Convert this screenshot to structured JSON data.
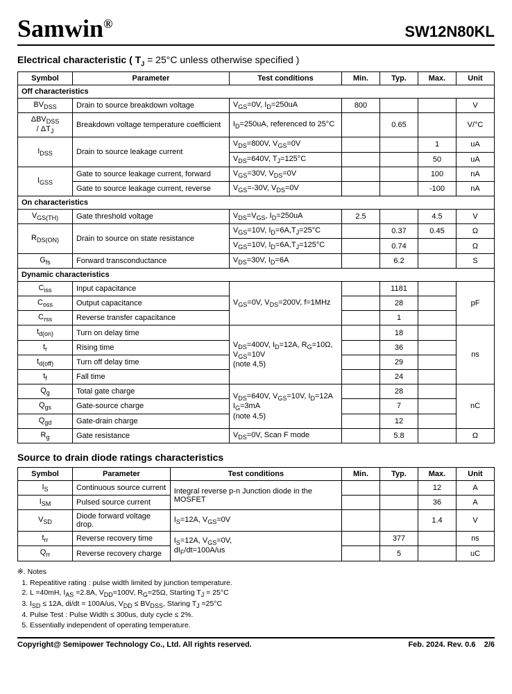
{
  "header": {
    "brand": "Samwin",
    "reg": "®",
    "partno": "SW12N80KL"
  },
  "ec_title": "Electrical characteristic ( T",
  "ec_title_sub": "J",
  "ec_title_rest": " = 25°C unless otherwise specified )",
  "cols": {
    "symbol": "Symbol",
    "param": "Parameter",
    "test": "Test conditions",
    "min": "Min.",
    "typ": "Typ.",
    "max": "Max.",
    "unit": "Unit"
  },
  "sub1": "Off characteristics",
  "sub2": "On characteristics",
  "sub3": "Dynamic characteristics",
  "r1": {
    "sym": "BV<sub>DSS</sub>",
    "param": "Drain to source breakdown voltage",
    "test": "V<sub>GS</sub>=0V, I<sub>D</sub>=250uA",
    "min": "800",
    "typ": "",
    "max": "",
    "unit": "V"
  },
  "r2": {
    "sym": "ΔBV<sub>DSS</sub><br>/ ΔT<sub>J</sub>",
    "param": "Breakdown voltage temperature coefficient",
    "test": "I<sub>D</sub>=250uA, referenced to 25°C",
    "min": "",
    "typ": "0.65",
    "max": "",
    "unit": "V/°C"
  },
  "r3": {
    "sym": "I<sub>DSS</sub>",
    "param": "Drain to source leakage current",
    "test1": "V<sub>DS</sub>=800V, V<sub>GS</sub>=0V",
    "max1": "1",
    "unit1": "uA",
    "test2": "V<sub>DS</sub>=640V, T<sub>J</sub>=125°C",
    "max2": "50",
    "unit2": "uA"
  },
  "r4": {
    "sym": "I<sub>GSS</sub>",
    "param1": "Gate to source leakage current, forward",
    "test1": "V<sub>GS</sub>=30V, V<sub>DS</sub>=0V",
    "max1": "100",
    "unit1": "nA",
    "param2": "Gate to source leakage current, reverse",
    "test2": "V<sub>GS</sub>=-30V, V<sub>DS</sub>=0V",
    "max2": "-100",
    "unit2": "nA"
  },
  "r5": {
    "sym": "V<sub>GS(TH)</sub>",
    "param": "Gate threshold voltage",
    "test": "V<sub>DS</sub>=V<sub>GS</sub>, I<sub>D</sub>=250uA",
    "min": "2.5",
    "typ": "",
    "max": "4.5",
    "unit": "V"
  },
  "r6": {
    "sym": "R<sub>DS(ON)</sub>",
    "param": "Drain to source on state resistance",
    "test1": "V<sub>GS</sub>=10V, I<sub>D</sub>=6A,T<sub>J</sub>=25°C",
    "typ1": "0.37",
    "max1": "0.45",
    "unit1": "Ω",
    "test2": "V<sub>GS</sub>=10V, I<sub>D</sub>=6A,T<sub>J</sub>=125°C",
    "typ2": "0.74",
    "unit2": "Ω"
  },
  "r7": {
    "sym": "G<sub>fs</sub>",
    "param": "Forward transconductance",
    "test": "V<sub>DS</sub>=30V, I<sub>D</sub>=6A",
    "typ": "6.2",
    "unit": "S"
  },
  "r8": {
    "sym": "C<sub>iss</sub>",
    "param": "Input capacitance",
    "typ": "1181"
  },
  "r9": {
    "sym": "C<sub>oss</sub>",
    "param": "Output capacitance",
    "test": "V<sub>GS</sub>=0V, V<sub>DS</sub>=200V, f=1MHz",
    "typ": "28",
    "unit": "pF"
  },
  "r10": {
    "sym": "C<sub>rss</sub>",
    "param": "Reverse transfer capacitance",
    "typ": "1"
  },
  "r11": {
    "sym": "t<sub>d(on)</sub>",
    "param": "Turn on delay time",
    "typ": "18"
  },
  "r12": {
    "sym": "t<sub>r</sub>",
    "param": "Rising time",
    "test": "V<sub>DS</sub>=400V, I<sub>D</sub>=12A, R<sub>G</sub>=10Ω,<br>V<sub>GS</sub>=10V<br>(note 4,5)",
    "typ": "36",
    "unit": "ns"
  },
  "r13": {
    "sym": "t<sub>d(off)</sub>",
    "param": "Turn off delay time",
    "typ": "29"
  },
  "r14": {
    "sym": "t<sub>f</sub>",
    "param": "Fall time",
    "typ": "24"
  },
  "r15": {
    "sym": "Q<sub>g</sub>",
    "param": "Total gate charge",
    "test": "V<sub>DS</sub>=640V, V<sub>GS</sub>=10V, I<sub>D</sub>=12A<br>I<sub>G</sub>=3mA<br>(note 4,5)",
    "typ": "28",
    "unit": "nC"
  },
  "r16": {
    "sym": "Q<sub>gs</sub>",
    "param": "Gate-source charge",
    "typ": "7"
  },
  "r17": {
    "sym": "Q<sub>gd</sub>",
    "param": "Gate-drain charge",
    "typ": "12"
  },
  "r18": {
    "sym": "R<sub>g</sub>",
    "param": "Gate resistance",
    "test": "V<sub>DS</sub>=0V, Scan F mode",
    "typ": "5.8",
    "unit": "Ω"
  },
  "diode_title": "Source to drain diode ratings characteristics",
  "d1": {
    "sym": "I<sub>S</sub>",
    "param": "Continuous source current",
    "test": "Integral reverse p-n Junction diode in the MOSFET",
    "max": "12",
    "unit": "A"
  },
  "d2": {
    "sym": "I<sub>SM</sub>",
    "param": "Pulsed source current",
    "max": "36",
    "unit": "A"
  },
  "d3": {
    "sym": "V<sub>SD</sub>",
    "param": "Diode forward voltage drop.",
    "test": "I<sub>S</sub>=12A, V<sub>GS</sub>=0V",
    "max": "1.4",
    "unit": "V"
  },
  "d4": {
    "sym": "t<sub>rr</sub>",
    "param": "Reverse recovery time",
    "test": "I<sub>S</sub>=12A, V<sub>GS</sub>=0V,<br>dI<sub>F</sub>/dt=100A/us",
    "typ": "377",
    "unit": "ns"
  },
  "d5": {
    "sym": "Q<sub>rr</sub>",
    "param": "Reverse recovery charge",
    "typ": "5",
    "unit": "uC"
  },
  "notes_hdr": "※. Notes",
  "n1": "Repeatitive rating : pulse width limited by junction temperature.",
  "n2": "L =40mH, I<sub>AS</sub> =2.8A, V<sub>DD</sub>=100V, R<sub>G</sub>=25Ω, Starting T<sub>J</sub> = 25°C",
  "n3": "I<sub>SD</sub> ≤ 12A, di/dt = 100A/us, V<sub>DD</sub> ≤ BV<sub>DSS</sub>, Staring T<sub>J</sub> =25°C",
  "n4": "Pulse Test : Pulse Width ≤ 300us, duty cycle ≤ 2%.",
  "n5": "Essentially independent of operating temperature.",
  "footer": {
    "copy": "Copyright@ Semipower Technology Co., Ltd. All rights reserved.",
    "rev": "Feb. 2024. Rev. 0.6",
    "page": "2/6"
  }
}
